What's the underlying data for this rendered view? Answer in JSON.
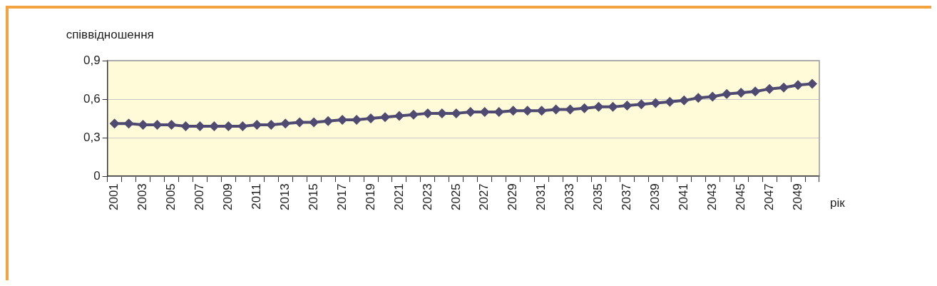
{
  "chart_data": {
    "type": "line",
    "ylabel": "співвідношення",
    "xlabel": "рік",
    "categories": [
      "2001",
      null,
      "2003",
      null,
      "2005",
      null,
      "2007",
      null,
      "2009",
      null,
      "2011",
      null,
      "2013",
      null,
      "2015",
      null,
      "2017",
      null,
      "2019",
      null,
      "2021",
      null,
      "2023",
      null,
      "2025",
      null,
      "2027",
      null,
      "2029",
      null,
      "2031",
      null,
      "2033",
      null,
      "2035",
      null,
      "2037",
      null,
      "2039",
      null,
      "2041",
      null,
      "2043",
      null,
      "2045",
      null,
      "2047",
      null,
      "2049",
      null
    ],
    "series": [
      {
        "color": "#4f4a72",
        "values": [
          0.41,
          0.41,
          0.4,
          0.4,
          0.4,
          0.39,
          0.39,
          0.39,
          0.39,
          0.39,
          0.4,
          0.4,
          0.41,
          0.42,
          0.42,
          0.43,
          0.44,
          0.44,
          0.45,
          0.46,
          0.47,
          0.48,
          0.49,
          0.49,
          0.49,
          0.5,
          0.5,
          0.5,
          0.51,
          0.51,
          0.51,
          0.52,
          0.52,
          0.53,
          0.54,
          0.54,
          0.55,
          0.56,
          0.57,
          0.58,
          0.59,
          0.61,
          0.62,
          0.64,
          0.65,
          0.66,
          0.68,
          0.69,
          0.71,
          0.72
        ]
      }
    ],
    "ylim": [
      0,
      0.9
    ],
    "yticks": [
      {
        "value": 0,
        "label": "0"
      },
      {
        "value": 0.3,
        "label": "0,3"
      },
      {
        "value": 0.6,
        "label": "0,6"
      },
      {
        "value": 0.9,
        "label": "0,9"
      }
    ],
    "grid": "y",
    "marker": "diamond",
    "line_style": "solid",
    "legend": false
  }
}
